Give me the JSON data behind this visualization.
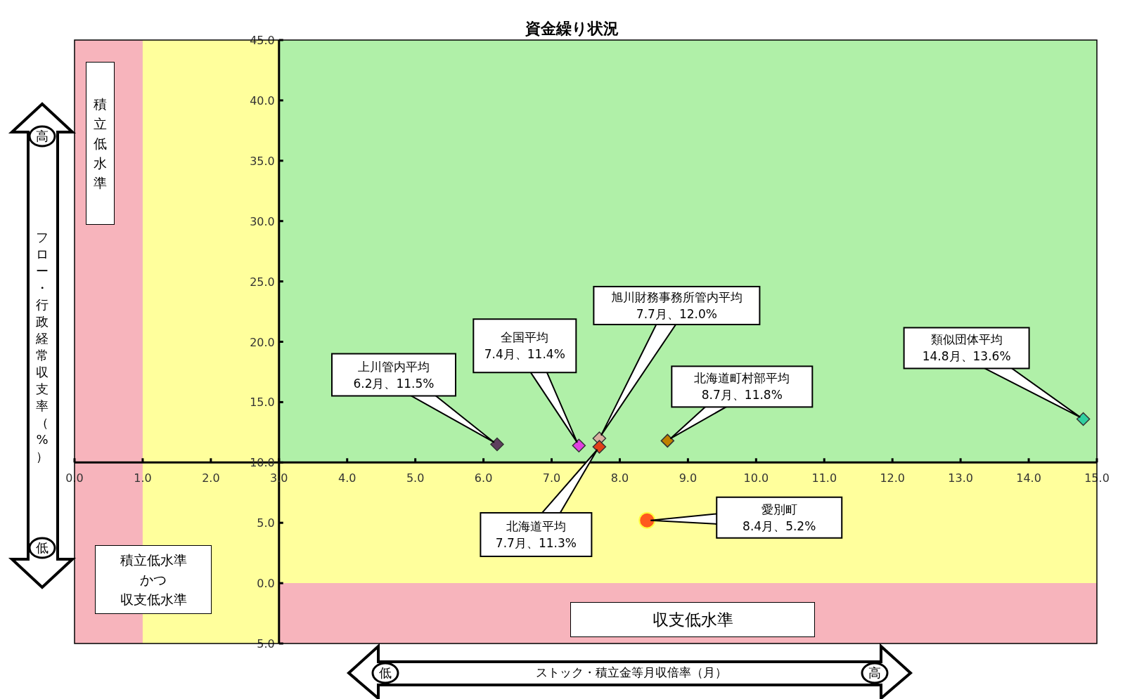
{
  "chart_data": {
    "type": "scatter",
    "title": "資金繰り状況",
    "xlabel": "ストック・積立金等月収倍率（月）",
    "ylabel": "フロー・行政経常収支率（%）",
    "marker": "diamond",
    "xlim": [
      0,
      15
    ],
    "ylim": [
      -5,
      45
    ],
    "xticks": [
      {
        "value": 0,
        "label": "0.0"
      },
      {
        "value": 1,
        "label": "1.0"
      },
      {
        "value": 2,
        "label": "2.0"
      },
      {
        "value": 3,
        "label": "3.0"
      },
      {
        "value": 4,
        "label": "4.0"
      },
      {
        "value": 5,
        "label": "5.0"
      },
      {
        "value": 6,
        "label": "6.0"
      },
      {
        "value": 7,
        "label": "7.0"
      },
      {
        "value": 8,
        "label": "8.0"
      },
      {
        "value": 9,
        "label": "9.0"
      },
      {
        "value": 10,
        "label": "10.0"
      },
      {
        "value": 11,
        "label": "11.0"
      },
      {
        "value": 12,
        "label": "12.0"
      },
      {
        "value": 13,
        "label": "13.0"
      },
      {
        "value": 14,
        "label": "14.0"
      },
      {
        "value": 15,
        "label": "15.0"
      }
    ],
    "yticks": [
      {
        "value": -5,
        "label": "5.0"
      },
      {
        "value": 0,
        "label": "0.0"
      },
      {
        "value": 5,
        "label": "5.0"
      },
      {
        "value": 10,
        "label": "10.0"
      },
      {
        "value": 15,
        "label": "15.0"
      },
      {
        "value": 20,
        "label": "20.0"
      },
      {
        "value": 25,
        "label": "25.0"
      },
      {
        "value": 30,
        "label": "30.0"
      },
      {
        "value": 35,
        "label": "35.0"
      },
      {
        "value": 40,
        "label": "40.0"
      },
      {
        "value": 45,
        "label": "45.0"
      }
    ],
    "bands": [
      {
        "axis": "y",
        "from": -5,
        "to": 0,
        "color": "#f7b4bc"
      },
      {
        "axis": "y",
        "from": 0,
        "to": 10,
        "color": "#ffff9c"
      },
      {
        "axis": "y",
        "from": 10,
        "to": 45,
        "color": "#b0f0a8"
      },
      {
        "axis": "x",
        "from": 0,
        "to": 1,
        "color": "#f7b4bc"
      },
      {
        "axis": "x",
        "from": 1,
        "to": 3,
        "color": "#ffff9c"
      }
    ],
    "series": [
      {
        "color": "#5e3f5e",
        "x": [
          6.2
        ],
        "values": [
          11.5
        ]
      },
      {
        "color": "#e040e0",
        "x": [
          7.4
        ],
        "values": [
          11.4
        ]
      },
      {
        "color": "#d8b0a0",
        "x": [
          7.7
        ],
        "values": [
          12.0
        ]
      },
      {
        "color": "#e04018",
        "x": [
          7.7
        ],
        "values": [
          11.3
        ]
      },
      {
        "color": "#c08000",
        "x": [
          8.7
        ],
        "values": [
          11.8
        ]
      },
      {
        "color": "#30d0a0",
        "x": [
          14.8
        ],
        "values": [
          13.6
        ]
      },
      {
        "color": "#ff5a1e",
        "marker": "circle",
        "x": [
          8.4
        ],
        "values": [
          5.2
        ]
      }
    ],
    "annotations": [
      "積立低水準",
      "積立低水準かつ収支低水準",
      "収支低水準",
      "高",
      "低",
      "低",
      "高",
      "上川管内平均",
      "6.2月、11.5%",
      "全国平均",
      "7.4月、11.4%",
      "旭川財務事務所管内平均",
      "7.7月、12.0%",
      "北海道平均",
      "7.7月、11.3%",
      "北海道町村部平均",
      "8.7月、11.8%",
      "類似団体平均",
      "14.8月、13.6%",
      "愛別町",
      "8.4月、5.2%"
    ]
  }
}
